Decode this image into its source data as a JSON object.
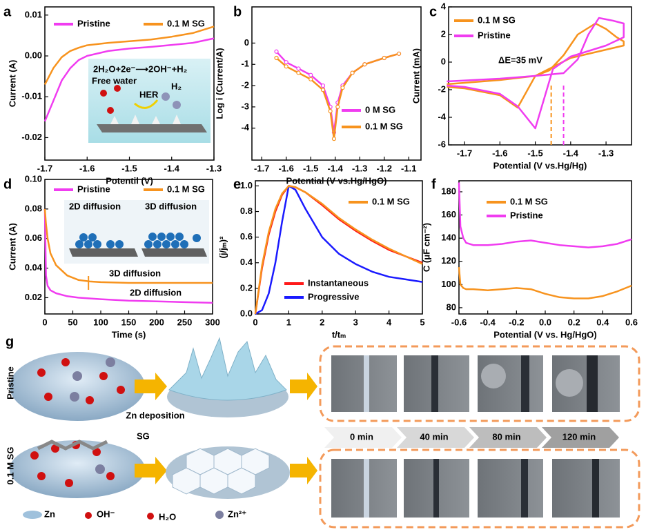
{
  "chart_data": [
    {
      "type": "line",
      "panel": "a",
      "x_label": "Potentil (V)",
      "y_label": "Current (A)",
      "xlim": [
        -1.7,
        -1.3
      ],
      "ylim": [
        -0.0255,
        0.012
      ],
      "xticks": [
        -1.7,
        -1.6,
        -1.5,
        -1.4,
        -1.3
      ],
      "yticks": [
        -0.02,
        -0.01,
        {
          "value": 0,
          "label": "0.00"
        },
        0.01
      ],
      "x": [
        -1.7,
        -1.68,
        -1.66,
        -1.64,
        -1.62,
        -1.6,
        -1.55,
        -1.5,
        -1.45,
        -1.4,
        -1.35,
        -1.3
      ],
      "series": [
        {
          "name": "Pristine",
          "color": "#f03cf0",
          "values": [
            -0.016,
            -0.011,
            -0.006,
            -0.003,
            -0.001,
            0.0,
            0.0012,
            0.0018,
            0.0022,
            0.0027,
            0.0032,
            0.0043
          ]
        },
        {
          "name": "0.1 M SG",
          "color": "#f7931e",
          "values": [
            -0.007,
            -0.003,
            -0.0003,
            0.0012,
            0.002,
            0.0026,
            0.0032,
            0.0036,
            0.004,
            0.0047,
            0.0056,
            0.0072
          ]
        }
      ],
      "annotations": [
        "2H₂O+2e⁻⟶2OH⁻+H₂",
        "Free water",
        "HER",
        "H₂"
      ]
    },
    {
      "type": "line",
      "panel": "b",
      "x_label": "Potential (V vs.Hg/HgO)",
      "y_label": "Log i (Current/A)",
      "xlim": [
        -1.74,
        -1.05
      ],
      "ylim": [
        -5.5,
        1.7
      ],
      "xticks": [
        -1.7,
        -1.6,
        -1.5,
        -1.4,
        -1.3,
        -1.2,
        -1.1
      ],
      "yticks": [
        0,
        -1,
        -2,
        -3,
        -4
      ],
      "x": [
        -1.64,
        -1.6,
        -1.55,
        -1.5,
        -1.45,
        -1.42,
        -1.405,
        -1.39,
        -1.37,
        -1.33,
        -1.28,
        -1.2,
        -1.14
      ],
      "marker": "circle",
      "series": [
        {
          "name": "0 M SG",
          "color": "#f03cf0",
          "values": [
            -0.4,
            -0.9,
            -1.2,
            -1.5,
            -2.0,
            -3.0,
            -4.2,
            -2.8,
            -2.0,
            -1.4,
            -1.0,
            -0.7,
            -0.5
          ]
        },
        {
          "name": "0.1 M SG",
          "color": "#f7931e",
          "values": [
            -0.7,
            -1.1,
            -1.4,
            -1.7,
            -2.2,
            -3.2,
            -4.5,
            -3.0,
            -2.1,
            -1.4,
            -1.0,
            -0.7,
            -0.5
          ]
        }
      ]
    },
    {
      "type": "line",
      "panel": "c",
      "x_label": "Potential (V vs.Hg/Hg)",
      "y_label": "Current (mA)",
      "xlim": [
        -1.745,
        -1.228
      ],
      "ylim": [
        -6,
        4
      ],
      "xticks": [
        -1.7,
        -1.6,
        -1.5,
        -1.4,
        -1.3
      ],
      "yticks": [
        -6,
        -4,
        -2,
        0,
        2,
        4
      ],
      "series": [
        {
          "name": "0.1 M SG",
          "color": "#f7931e",
          "x": [
            -1.75,
            -1.6,
            -1.5,
            -1.46,
            -1.42,
            -1.38,
            -1.33,
            -1.3,
            -1.27,
            -1.25,
            -1.25,
            -1.3,
            -1.4,
            -1.5,
            -1.55,
            -1.6,
            -1.7,
            -1.75
          ],
          "values": [
            -1.6,
            -1.3,
            -1.0,
            -0.6,
            0.5,
            2.0,
            2.8,
            2.4,
            1.8,
            1.5,
            1.2,
            0.9,
            0.3,
            -1.0,
            -3.3,
            -2.4,
            -1.9,
            -1.8
          ]
        },
        {
          "name": "Pristine",
          "color": "#f03cf0",
          "x": [
            -1.75,
            -1.6,
            -1.5,
            -1.42,
            -1.38,
            -1.35,
            -1.32,
            -1.28,
            -1.25,
            -1.25,
            -1.3,
            -1.4,
            -1.45,
            -1.5,
            -1.55,
            -1.6,
            -1.7,
            -1.75
          ],
          "values": [
            -1.4,
            -1.2,
            -1.0,
            -0.8,
            0.2,
            2.0,
            3.2,
            3.0,
            2.8,
            1.8,
            1.2,
            0.4,
            -0.5,
            -4.8,
            -3.2,
            -2.3,
            -1.8,
            -1.7
          ]
        }
      ],
      "markers": [
        {
          "x": -1.455,
          "color": "#f7931e"
        },
        {
          "x": -1.42,
          "color": "#f03cf0"
        }
      ],
      "annotations": [
        "ΔE=35 mV"
      ]
    },
    {
      "type": "line",
      "panel": "d",
      "x_label": "Time (s)",
      "y_label": "Current (A)",
      "xlim": [
        0,
        300
      ],
      "ylim": [
        0.009,
        0.1
      ],
      "xticks": [
        0,
        50,
        100,
        150,
        200,
        250,
        300
      ],
      "yticks": [
        0.02,
        0.04,
        0.06,
        0.08,
        {
          "value": 0.1,
          "label": "0.10"
        }
      ],
      "x": [
        0,
        2,
        5,
        10,
        20,
        40,
        60,
        80,
        100,
        150,
        200,
        250,
        300
      ],
      "series": [
        {
          "name": "Pristine",
          "color": "#f03cf0",
          "values": [
            0.08,
            0.035,
            0.028,
            0.025,
            0.023,
            0.021,
            0.02,
            0.0195,
            0.019,
            0.018,
            0.0175,
            0.017,
            0.0165
          ]
        },
        {
          "name": "0.1 M SG",
          "color": "#f7931e",
          "values": [
            0.08,
            0.07,
            0.06,
            0.05,
            0.042,
            0.035,
            0.032,
            0.031,
            0.0305,
            0.03,
            0.03,
            0.03,
            0.03
          ]
        }
      ],
      "markers": [
        {
          "x": 78,
          "color": "#f7931e"
        }
      ],
      "annotations": [
        "3D diffusion",
        "2D diffusion",
        "2D diffusion",
        "3D diffusion"
      ]
    },
    {
      "type": "line",
      "panel": "e",
      "x_label": "t/tₘ",
      "y_label": "(j/jₘ)²",
      "xlim": [
        0,
        5
      ],
      "ylim": [
        0,
        1.04
      ],
      "xticks": [
        0,
        1,
        2,
        3,
        4,
        5
      ],
      "yticks": [
        {
          "value": 0,
          "label": "0.0"
        },
        0.2,
        0.4,
        0.6,
        0.8,
        {
          "value": 1,
          "label": "1.0"
        }
      ],
      "x": [
        0,
        0.2,
        0.4,
        0.6,
        0.8,
        1.0,
        1.2,
        1.5,
        2,
        2.5,
        3,
        3.5,
        4,
        4.5,
        5
      ],
      "series": [
        {
          "name": "Instantaneous",
          "color": "#ff1a1a",
          "values": [
            0,
            0.36,
            0.62,
            0.8,
            0.93,
            1.0,
            0.99,
            0.95,
            0.85,
            0.74,
            0.65,
            0.57,
            0.5,
            0.45,
            0.4
          ]
        },
        {
          "name": "Progressive",
          "color": "#1a1aff",
          "values": [
            0,
            0.03,
            0.16,
            0.4,
            0.72,
            1.0,
            0.97,
            0.82,
            0.6,
            0.47,
            0.39,
            0.33,
            0.29,
            0.27,
            0.25
          ]
        },
        {
          "name": "0.1 M SG",
          "color": "#f7931e",
          "values": [
            0,
            0.38,
            0.64,
            0.82,
            0.94,
            1.0,
            0.99,
            0.95,
            0.86,
            0.75,
            0.66,
            0.58,
            0.51,
            0.45,
            0.39
          ]
        }
      ]
    },
    {
      "type": "line",
      "panel": "f",
      "x_label": "Potential (V vs. Hg/HgO)",
      "y_label": "C (μF cm⁻²)",
      "xlim": [
        -0.6,
        0.6
      ],
      "ylim": [
        74.6,
        189.5
      ],
      "xticks": [
        -0.6,
        -0.4,
        -0.2,
        {
          "value": 0,
          "label": "0.0"
        },
        0.2,
        0.4,
        0.6
      ],
      "yticks": [
        80,
        100,
        120,
        140,
        160,
        180
      ],
      "x": [
        -0.6,
        -0.59,
        -0.57,
        -0.55,
        -0.5,
        -0.4,
        -0.3,
        -0.2,
        -0.1,
        0,
        0.1,
        0.2,
        0.3,
        0.4,
        0.5,
        0.6
      ],
      "series": [
        {
          "name": "0.1 M SG",
          "color": "#f7931e",
          "values": [
            115,
            100,
            97,
            96,
            96,
            95,
            96,
            97,
            96,
            92,
            89,
            88,
            88,
            90,
            94,
            99
          ]
        },
        {
          "name": "Pristine",
          "color": "#f03cf0",
          "values": [
            188,
            150,
            140,
            136,
            134,
            134,
            135,
            137,
            138,
            136,
            134,
            133,
            132,
            133,
            135,
            139
          ]
        }
      ]
    }
  ],
  "panel_g": {
    "letter": "g",
    "rows": [
      "Pristine",
      "0.1 M SG"
    ],
    "zn_deposition": "Zn deposition",
    "sg": "SG",
    "legend": [
      "Zn",
      "OH⁻",
      "H₂O",
      "Zn²⁺"
    ],
    "times": [
      "0 min",
      "40 min",
      "80 min",
      "120 min"
    ]
  }
}
